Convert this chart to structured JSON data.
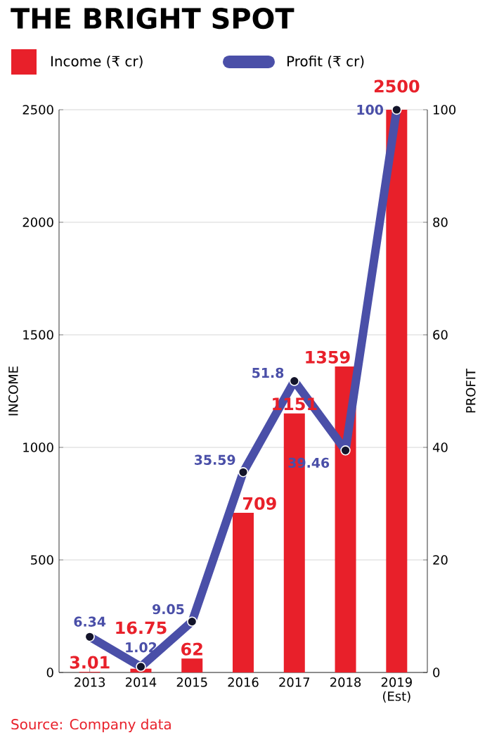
{
  "chart_data": {
    "type": "bar",
    "title": "THE BRIGHT SPOT",
    "categories": [
      "2013",
      "2014",
      "2015",
      "2016",
      "2017",
      "2018",
      "2019 (Est)"
    ],
    "series": [
      {
        "name": "Income (₹ cr)",
        "color": "#e8202a",
        "values": [
          3.01,
          16.75,
          62,
          709,
          1151,
          1359,
          2500
        ],
        "value_labels": [
          "3.01",
          "16.75",
          "62",
          "709",
          "1151",
          "1359",
          "2500"
        ]
      },
      {
        "name": "Profit (₹ cr)",
        "type": "line",
        "axis": "y2",
        "color": "#4a4fa8",
        "values": [
          6.34,
          1.02,
          9.05,
          35.59,
          51.8,
          39.46,
          100
        ],
        "value_labels": [
          "6.34",
          "1.02",
          "9.05",
          "35.59",
          "51.8",
          "39.46",
          "100"
        ]
      }
    ],
    "ylabel": "INCOME",
    "y2label": "PROFIT",
    "ylim": [
      0,
      2500
    ],
    "yticks": [
      0,
      500,
      1000,
      1500,
      2000,
      2500
    ],
    "y2lim": [
      0,
      100
    ],
    "y2ticks": [
      0,
      20,
      40,
      60,
      80,
      100
    ],
    "grid": "y",
    "legend": "top left",
    "marker": "circle",
    "annotations": [
      "Source: Company data"
    ]
  }
}
